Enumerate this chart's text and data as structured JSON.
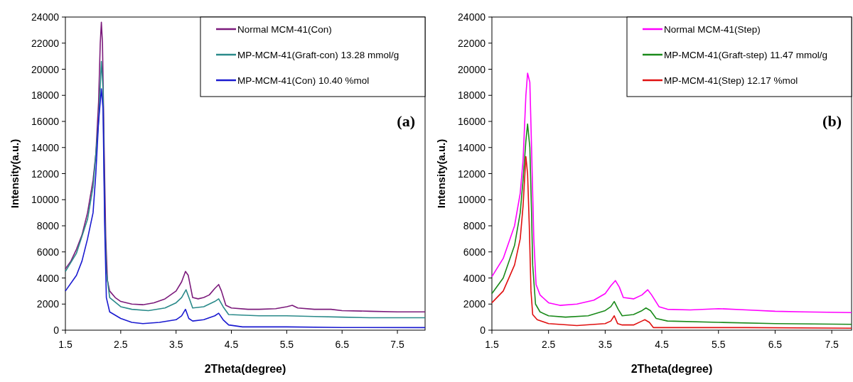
{
  "chart_data": [
    {
      "type": "line",
      "xlabel": "2Theta(degree)",
      "ylabel": "Intensity(a.u.)",
      "annotations": [
        "(a)"
      ],
      "xlim": [
        1.5,
        8
      ],
      "xticks": [
        1.5,
        2.5,
        3.5,
        4.5,
        5.5,
        6.5,
        7.5
      ],
      "ylim": [
        0,
        24000
      ],
      "yticks": [
        0,
        2000,
        4000,
        6000,
        8000,
        10000,
        12000,
        14000,
        16000,
        18000,
        20000,
        22000,
        24000
      ],
      "grid": false,
      "legend": "top right",
      "series": [
        {
          "name": "Normal MCM-41(Con)",
          "color": "#7b1a7b",
          "x": [
            1.5,
            1.6,
            1.7,
            1.8,
            1.9,
            2.0,
            2.05,
            2.1,
            2.13,
            2.15,
            2.17,
            2.2,
            2.23,
            2.26,
            2.3,
            2.4,
            2.5,
            2.7,
            2.9,
            3.1,
            3.3,
            3.5,
            3.6,
            3.67,
            3.72,
            3.8,
            3.9,
            4.0,
            4.1,
            4.2,
            4.27,
            4.32,
            4.4,
            4.5,
            4.8,
            5.0,
            5.3,
            5.5,
            5.6,
            5.7,
            6.0,
            6.3,
            6.5,
            7.0,
            7.5,
            8.0
          ],
          "values": [
            4700,
            5300,
            6200,
            7300,
            9000,
            11500,
            13500,
            17500,
            22000,
            23600,
            22000,
            14000,
            7000,
            3800,
            3000,
            2500,
            2200,
            2000,
            1950,
            2100,
            2400,
            3000,
            3700,
            4500,
            4200,
            2500,
            2400,
            2500,
            2700,
            3200,
            3500,
            3000,
            1900,
            1700,
            1600,
            1600,
            1650,
            1800,
            1900,
            1700,
            1600,
            1600,
            1500,
            1450,
            1400,
            1400
          ]
        },
        {
          "name": "MP-MCM-41(Graft-con) 13.28 mmol/g",
          "color": "#2a8a8a",
          "x": [
            1.5,
            1.7,
            1.9,
            2.0,
            2.1,
            2.15,
            2.18,
            2.21,
            2.24,
            2.3,
            2.5,
            2.7,
            3.0,
            3.3,
            3.5,
            3.6,
            3.68,
            3.75,
            3.8,
            4.0,
            4.2,
            4.27,
            4.35,
            4.45,
            5.0,
            5.5,
            6.0,
            6.5,
            7.0,
            8.0
          ],
          "values": [
            4500,
            5900,
            8500,
            11000,
            16000,
            20600,
            18500,
            9000,
            4500,
            2500,
            1800,
            1600,
            1500,
            1700,
            2100,
            2500,
            3100,
            2300,
            1700,
            1800,
            2200,
            2400,
            1800,
            1200,
            1100,
            1100,
            1050,
            1000,
            950,
            950
          ]
        },
        {
          "name": "MP-MCM-41(Con) 10.40 %mol",
          "color": "#1a1ad0",
          "x": [
            1.5,
            1.7,
            1.8,
            1.9,
            2.0,
            2.05,
            2.1,
            2.15,
            2.18,
            2.21,
            2.24,
            2.3,
            2.5,
            2.7,
            2.9,
            3.2,
            3.5,
            3.6,
            3.67,
            3.73,
            3.8,
            4.0,
            4.2,
            4.27,
            4.35,
            4.45,
            4.7,
            5.5,
            6.5,
            8.0
          ],
          "values": [
            3000,
            4200,
            5300,
            7000,
            9000,
            12000,
            16000,
            18500,
            17000,
            8000,
            2500,
            1400,
            900,
            600,
            500,
            600,
            800,
            1100,
            1600,
            900,
            700,
            800,
            1100,
            1300,
            800,
            400,
            250,
            250,
            200,
            200
          ]
        }
      ]
    },
    {
      "type": "line",
      "xlabel": "2Theta(degree)",
      "ylabel": "Intensity(a.u.)",
      "annotations": [
        "(b)"
      ],
      "xlim": [
        1.5,
        7.85
      ],
      "xticks": [
        1.5,
        2.5,
        3.5,
        4.5,
        5.5,
        6.5,
        7.5
      ],
      "ylim": [
        0,
        24000
      ],
      "yticks": [
        0,
        2000,
        4000,
        6000,
        8000,
        10000,
        12000,
        14000,
        16000,
        18000,
        20000,
        22000,
        24000
      ],
      "grid": false,
      "legend": "top right",
      "series": [
        {
          "name": "Normal MCM-41(Step)",
          "color": "#ff00ff",
          "x": [
            1.5,
            1.7,
            1.9,
            2.0,
            2.05,
            2.1,
            2.13,
            2.17,
            2.2,
            2.24,
            2.28,
            2.35,
            2.5,
            2.7,
            3.0,
            3.3,
            3.5,
            3.6,
            3.68,
            3.75,
            3.82,
            4.0,
            4.15,
            4.25,
            4.32,
            4.45,
            4.6,
            5.0,
            5.5,
            6.0,
            6.5,
            7.0,
            7.85
          ],
          "values": [
            4100,
            5500,
            8000,
            10500,
            13000,
            18000,
            19700,
            19000,
            14000,
            7000,
            3500,
            2700,
            2100,
            1900,
            2000,
            2300,
            2800,
            3400,
            3800,
            3300,
            2500,
            2400,
            2700,
            3100,
            2700,
            1800,
            1600,
            1550,
            1650,
            1550,
            1450,
            1400,
            1350
          ]
        },
        {
          "name": "MP-MCM-41(Graft-step) 11.47 mmol/g",
          "color": "#1a8a1a",
          "x": [
            1.5,
            1.7,
            1.9,
            2.0,
            2.05,
            2.1,
            2.13,
            2.17,
            2.2,
            2.22,
            2.27,
            2.35,
            2.5,
            2.8,
            3.2,
            3.5,
            3.6,
            3.66,
            3.73,
            3.8,
            4.0,
            4.15,
            4.22,
            4.3,
            4.4,
            4.6,
            5.5,
            6.5,
            7.85
          ],
          "values": [
            2800,
            4000,
            6500,
            9000,
            11500,
            14500,
            15800,
            14000,
            9000,
            5000,
            2000,
            1400,
            1100,
            1000,
            1100,
            1500,
            1800,
            2200,
            1600,
            1100,
            1200,
            1500,
            1700,
            1500,
            900,
            700,
            600,
            500,
            450
          ]
        },
        {
          "name": "MP-MCM-41(Step) 12.17 %mol",
          "color": "#e01010",
          "x": [
            1.5,
            1.7,
            1.9,
            2.0,
            2.05,
            2.1,
            2.13,
            2.16,
            2.19,
            2.22,
            2.3,
            2.5,
            3.0,
            3.5,
            3.6,
            3.66,
            3.72,
            3.8,
            4.0,
            4.15,
            4.2,
            4.28,
            4.35,
            5.0,
            6.0,
            7.85
          ],
          "values": [
            2100,
            3000,
            5000,
            7000,
            9500,
            13300,
            12000,
            8000,
            3000,
            1200,
            800,
            500,
            350,
            500,
            700,
            1100,
            500,
            400,
            400,
            700,
            800,
            600,
            200,
            200,
            200,
            150
          ]
        }
      ]
    }
  ]
}
